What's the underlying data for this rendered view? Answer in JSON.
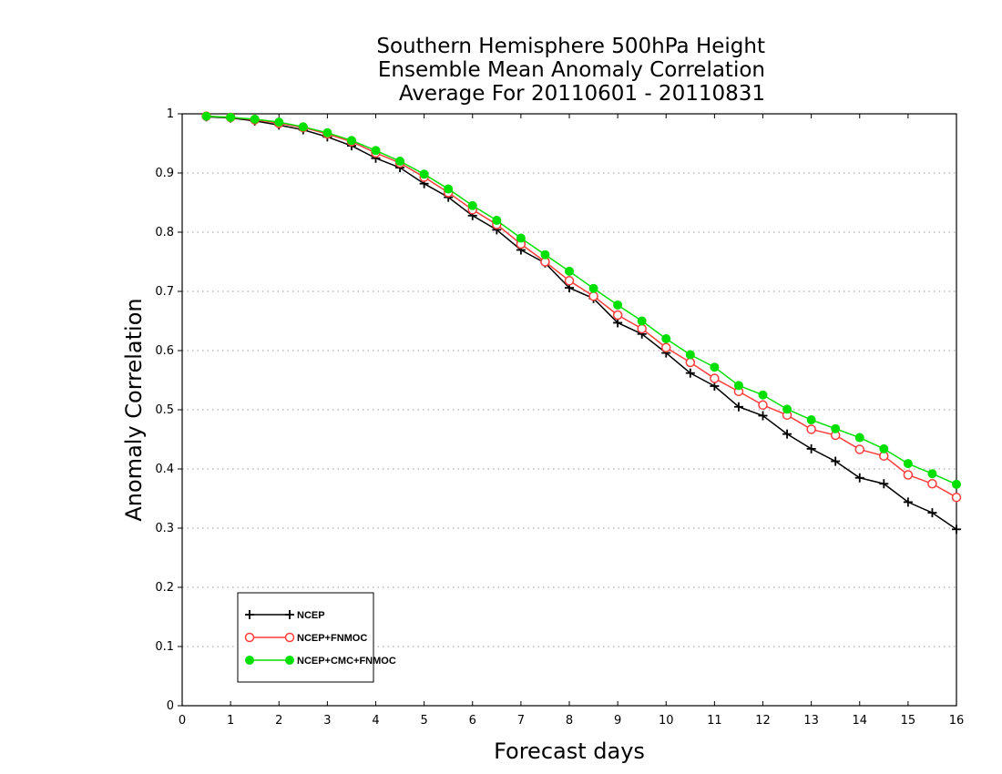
{
  "chart_data": {
    "type": "line",
    "title_lines": [
      "Southern Hemisphere 500hPa Height",
      "Ensemble Mean Anomaly Correlation",
      "Average For 20110601 - 20110831"
    ],
    "xlabel": "Forecast days",
    "ylabel": "Anomaly Correlation",
    "xlim": [
      0,
      16
    ],
    "ylim": [
      0,
      1
    ],
    "xticks": [
      "0",
      "1",
      "2",
      "3",
      "4",
      "5",
      "6",
      "7",
      "8",
      "9",
      "10",
      "11",
      "12",
      "13",
      "14",
      "15",
      "16"
    ],
    "yticks": [
      "0",
      "0.1",
      "0.2",
      "0.3",
      "0.4",
      "0.5",
      "0.6",
      "0.7",
      "0.8",
      "0.9",
      "1"
    ],
    "grid": "horizontal dotted",
    "legend_placement": "bottom-left",
    "x": [
      0.5,
      1,
      1.5,
      2,
      2.5,
      3,
      3.5,
      4,
      4.5,
      5,
      5.5,
      6,
      6.5,
      7,
      7.5,
      8,
      8.5,
      9,
      9.5,
      10,
      10.5,
      11,
      11.5,
      12,
      12.5,
      13,
      13.5,
      14,
      14.5,
      15,
      15.5,
      16
    ],
    "series": [
      {
        "name": "NCEP",
        "color": "#000000",
        "marker": "plus",
        "values": [
          0.995,
          0.993,
          0.988,
          0.981,
          0.973,
          0.961,
          0.946,
          0.925,
          0.909,
          0.882,
          0.859,
          0.828,
          0.804,
          0.77,
          0.748,
          0.706,
          0.688,
          0.647,
          0.628,
          0.596,
          0.562,
          0.54,
          0.505,
          0.49,
          0.459,
          0.434,
          0.413,
          0.385,
          0.375,
          0.344,
          0.326,
          0.298
        ]
      },
      {
        "name": "NCEP+FNMOC",
        "color": "#ff3c3c",
        "marker": "open-circle",
        "values": [
          0.996,
          0.994,
          0.99,
          0.984,
          0.977,
          0.966,
          0.953,
          0.934,
          0.917,
          0.893,
          0.867,
          0.838,
          0.813,
          0.78,
          0.75,
          0.718,
          0.692,
          0.66,
          0.637,
          0.605,
          0.58,
          0.553,
          0.531,
          0.508,
          0.491,
          0.467,
          0.457,
          0.433,
          0.422,
          0.39,
          0.375,
          0.352
        ]
      },
      {
        "name": "NCEP+CMC+FNMOC",
        "color": "#00e000",
        "marker": "filled-circle",
        "values": [
          0.996,
          0.994,
          0.991,
          0.986,
          0.978,
          0.968,
          0.955,
          0.938,
          0.92,
          0.898,
          0.873,
          0.845,
          0.82,
          0.79,
          0.762,
          0.734,
          0.705,
          0.677,
          0.65,
          0.62,
          0.593,
          0.572,
          0.541,
          0.525,
          0.501,
          0.483,
          0.468,
          0.453,
          0.434,
          0.409,
          0.392,
          0.374
        ]
      }
    ]
  }
}
